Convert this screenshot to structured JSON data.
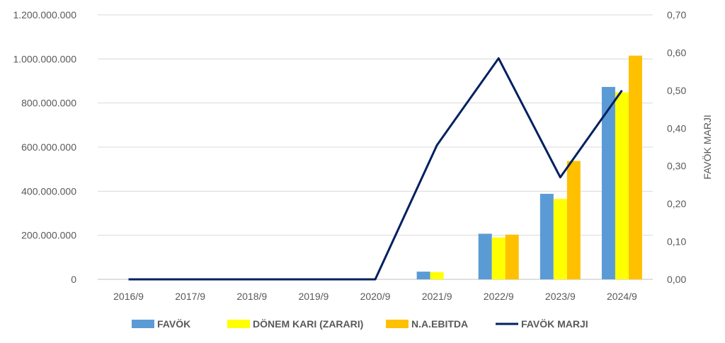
{
  "chart_data": {
    "type": "bar",
    "categories": [
      "2016/9",
      "2017/9",
      "2018/9",
      "2019/9",
      "2020/9",
      "2021/9",
      "2022/9",
      "2023/9",
      "2024/9"
    ],
    "y_left": {
      "range": [
        0,
        1200000000
      ],
      "ticks": [
        0,
        200000000,
        400000000,
        600000000,
        800000000,
        1000000000,
        1200000000
      ],
      "tick_labels": [
        "0",
        "200.000.000",
        "400.000.000",
        "600.000.000",
        "800.000.000",
        "1.000.000.000",
        "1.200.000.000"
      ]
    },
    "y_right": {
      "label": "FAVÖK MARJI",
      "range": [
        0,
        0.7
      ],
      "ticks": [
        0,
        0.1,
        0.2,
        0.3,
        0.4,
        0.5,
        0.6,
        0.7
      ],
      "tick_labels": [
        "0,00",
        "0,10",
        "0,20",
        "0,30",
        "0,40",
        "0,50",
        "0,60",
        "0,70"
      ]
    },
    "series": [
      {
        "name": "FAVÖK",
        "type": "bar",
        "axis": "left",
        "color": "#5B9BD5",
        "values": [
          0,
          0,
          0,
          0,
          0,
          35000000,
          207000000,
          388000000,
          873000000
        ]
      },
      {
        "name": "DÖNEM KARI (ZARARI)",
        "type": "bar",
        "axis": "left",
        "color": "#FFFF00",
        "values": [
          0,
          0,
          0,
          0,
          0,
          33000000,
          190000000,
          365000000,
          848000000
        ]
      },
      {
        "name": "N.A.EBITDA",
        "type": "bar",
        "axis": "left",
        "color": "#FFC000",
        "values": [
          0,
          0,
          0,
          0,
          0,
          0,
          203000000,
          537000000,
          1015000000
        ]
      },
      {
        "name": "FAVÖK MARJI",
        "type": "line",
        "axis": "right",
        "color": "#002060",
        "values": [
          0,
          0,
          0,
          0,
          0,
          0.355,
          0.585,
          0.27,
          0.5
        ]
      }
    ],
    "grid": true,
    "legend_position": "bottom"
  }
}
